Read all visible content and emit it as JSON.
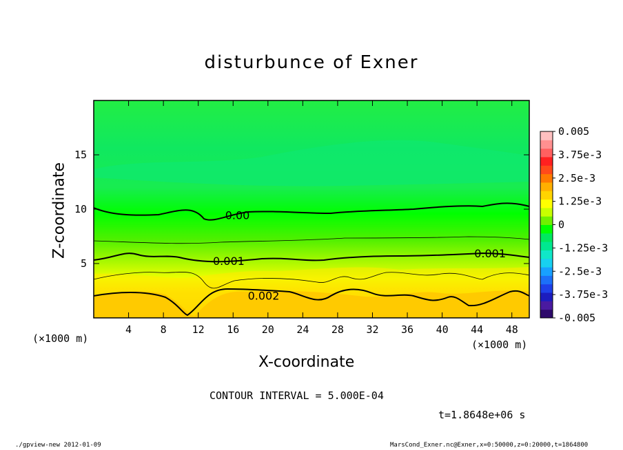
{
  "chart_data": {
    "type": "heatmap",
    "title": "disturbunce of Exner",
    "xlabel": "X-coordinate",
    "ylabel": "Z-coordinate",
    "x_unit": "(×1000 m)",
    "x_unit_right": "(×1000 m)",
    "xlim": [
      0,
      50
    ],
    "ylim": [
      0,
      20
    ],
    "x_ticks": [
      4,
      8,
      12,
      16,
      20,
      24,
      28,
      32,
      36,
      40,
      44,
      48
    ],
    "y_ticks": [
      5,
      10,
      15
    ],
    "contour_labels": [
      {
        "text": "0.00",
        "x": 16.5,
        "z": 9.4
      },
      {
        "text": "0.001",
        "x": 15.5,
        "z": 5.2
      },
      {
        "text": "0.001",
        "x": 45.5,
        "z": 5.9
      },
      {
        "text": "0.002",
        "x": 19.5,
        "z": 2.0
      }
    ],
    "colorbar": {
      "labels": [
        "0.005",
        "3.75e-3",
        "2.5e-3",
        "1.25e-3",
        "0",
        "-1.25e-3",
        "-2.5e-3",
        "-3.75e-3",
        "-0.005"
      ],
      "colors": [
        "#2e0a6b",
        "#4a1aa0",
        "#1c1cbe",
        "#1e40e8",
        "#1c70f8",
        "#18a0ff",
        "#18d0f0",
        "#10e8c8",
        "#00e890",
        "#00e860",
        "#00ff00",
        "#70f000",
        "#c8ff00",
        "#ffff00",
        "#ffd400",
        "#ffb000",
        "#ff7a00",
        "#ff4a1a",
        "#ff2020",
        "#ff6060",
        "#ff9090",
        "#ffc0c0"
      ]
    },
    "contour_interval_text": "CONTOUR INTERVAL = 5.000E-04",
    "time_text": "t=1.8648e+06 s"
  },
  "footer": {
    "left": "./gpview-new  2012-01-09",
    "right": "MarsCond_Exner.nc@Exner,x=0:50000,z=0:20000,t=1864800"
  }
}
